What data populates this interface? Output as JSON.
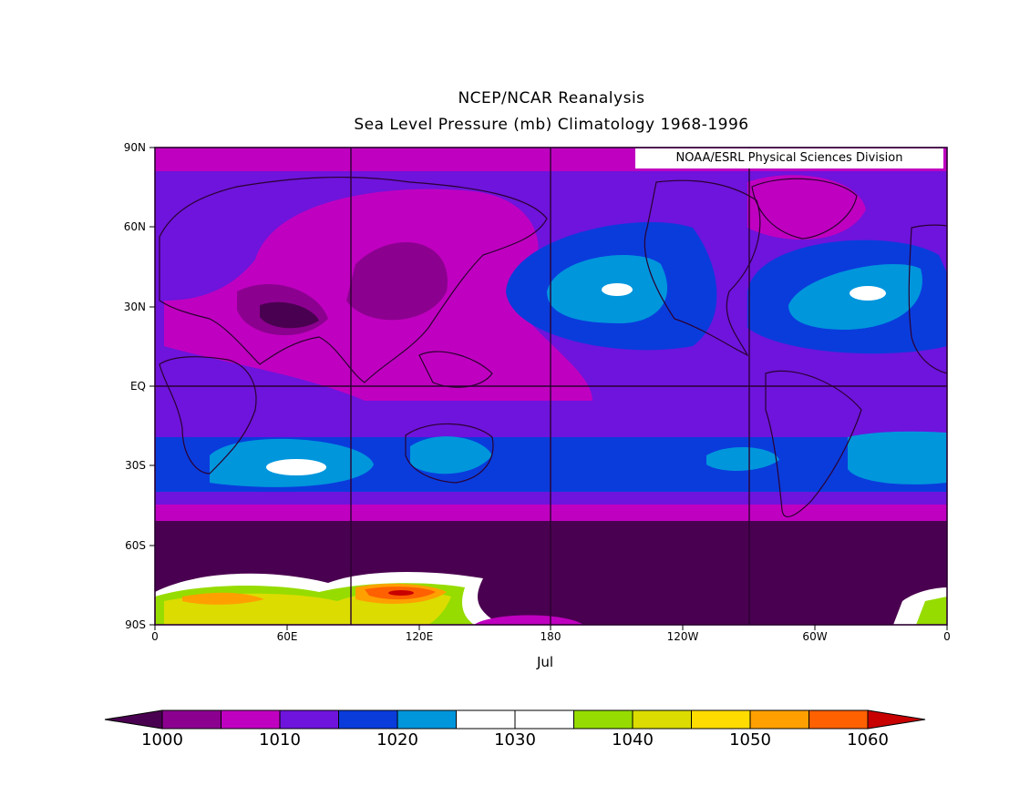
{
  "title": "NCEP/NCAR Reanalysis",
  "subtitle": "Sea Level Pressure (mb) Climatology 1968-1996",
  "credit": "NOAA/ESRL Physical Sciences Division",
  "month_label": "Jul",
  "lat_labels": [
    "90N",
    "60N",
    "30N",
    "EQ",
    "30S",
    "60S",
    "90S"
  ],
  "lon_labels": [
    "0",
    "60E",
    "120E",
    "180",
    "120W",
    "60W",
    "0"
  ],
  "colorbar": {
    "labels": [
      "1000",
      "1010",
      "1020",
      "1030",
      "1040",
      "1050",
      "1060"
    ],
    "colors": [
      "#4a0050",
      "#8c0090",
      "#c000c0",
      "#6e14dc",
      "#0a3cdc",
      "#0096dc",
      "#ffffff",
      "#ffffff",
      "#96dc00",
      "#dcdc00",
      "#ffdc00",
      "#ffa000",
      "#ff6000",
      "#c80000"
    ]
  },
  "chart_data": {
    "type": "heatmap",
    "variable": "Sea Level Pressure (mb)",
    "period": "1968-1996",
    "month": "Jul",
    "lat_range": [
      -90,
      90
    ],
    "lon_range": [
      0,
      360
    ],
    "levels": [
      1000,
      1002.5,
      1005,
      1007.5,
      1010,
      1012.5,
      1015,
      1017.5,
      1020,
      1022.5,
      1025,
      1027.5,
      1030,
      1032.5,
      1035,
      1037.5,
      1040,
      1042.5,
      1045,
      1047.5,
      1050,
      1052.5,
      1055,
      1057.5,
      1060
    ],
    "grid_lines_lon": [
      90,
      180,
      270
    ],
    "grid_lines_lat": [
      0
    ]
  }
}
